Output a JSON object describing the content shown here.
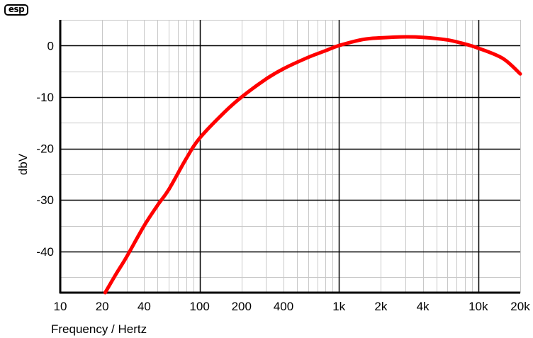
{
  "logo": {
    "text": "esp"
  },
  "chart_data": {
    "type": "line",
    "xlabel": "Frequency / Hertz",
    "ylabel": "dbV",
    "xscale": "log",
    "xlim": [
      10,
      20000
    ],
    "ylim": [
      -48,
      5
    ],
    "x_ticks": [
      {
        "value": 10,
        "label": "10"
      },
      {
        "value": 20,
        "label": "20"
      },
      {
        "value": 40,
        "label": "40"
      },
      {
        "value": 100,
        "label": "100"
      },
      {
        "value": 200,
        "label": "200"
      },
      {
        "value": 400,
        "label": "400"
      },
      {
        "value": 1000,
        "label": "1k"
      },
      {
        "value": 2000,
        "label": "2k"
      },
      {
        "value": 4000,
        "label": "4k"
      },
      {
        "value": 10000,
        "label": "10k"
      },
      {
        "value": 20000,
        "label": "20k"
      }
    ],
    "y_ticks": [
      {
        "value": 0,
        "label": "0"
      },
      {
        "value": -10,
        "label": "-10"
      },
      {
        "value": -20,
        "label": "-20"
      },
      {
        "value": -30,
        "label": "-30"
      },
      {
        "value": -40,
        "label": "-40"
      }
    ],
    "y_minor_step": 5,
    "grid": true,
    "line_color": "#ff0000",
    "series": [
      {
        "x": [
          21,
          25,
          30,
          40,
          50,
          60,
          80,
          100,
          150,
          200,
          300,
          400,
          600,
          800,
          1000,
          1500,
          2000,
          3000,
          4000,
          6000,
          8000,
          10000,
          15000,
          20000
        ],
        "y": [
          -48,
          -44.5,
          -41,
          -35,
          -31,
          -28,
          -22,
          -18,
          -13,
          -10,
          -6.5,
          -4.5,
          -2.3,
          -1,
          0,
          1.2,
          1.5,
          1.7,
          1.6,
          1.1,
          0.3,
          -0.5,
          -2.5,
          -5.5
        ]
      }
    ]
  }
}
